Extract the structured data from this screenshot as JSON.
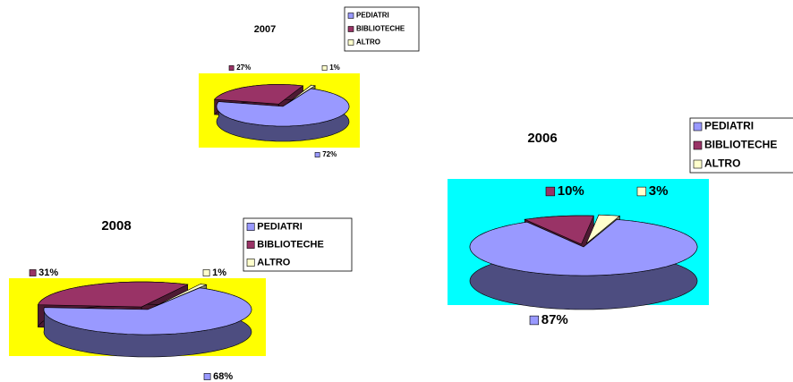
{
  "chart_data": [
    {
      "type": "pie",
      "title": "2007",
      "categories": [
        "PEDIATRI",
        "BIBLIOTECHE",
        "ALTRO"
      ],
      "values": [
        72,
        27,
        1
      ],
      "value_labels": [
        "72%",
        "27%",
        "1%"
      ],
      "colors": [
        "#9999ff",
        "#993366",
        "#ffffcc"
      ],
      "background": "#ffff00"
    },
    {
      "type": "pie",
      "title": "2008",
      "categories": [
        "PEDIATRI",
        "BIBLIOTECHE",
        "ALTRO"
      ],
      "values": [
        68,
        31,
        1
      ],
      "value_labels": [
        "68%",
        "31%",
        "1%"
      ],
      "colors": [
        "#9999ff",
        "#993366",
        "#ffffcc"
      ],
      "background": "#ffff00"
    },
    {
      "type": "pie",
      "title": "2006",
      "categories": [
        "PEDIATRI",
        "BIBLIOTECHE",
        "ALTRO"
      ],
      "values": [
        87,
        10,
        3
      ],
      "value_labels": [
        "87%",
        "10%",
        "3%"
      ],
      "colors": [
        "#9999ff",
        "#993366",
        "#ffffcc"
      ],
      "background": "#00ffff"
    }
  ]
}
